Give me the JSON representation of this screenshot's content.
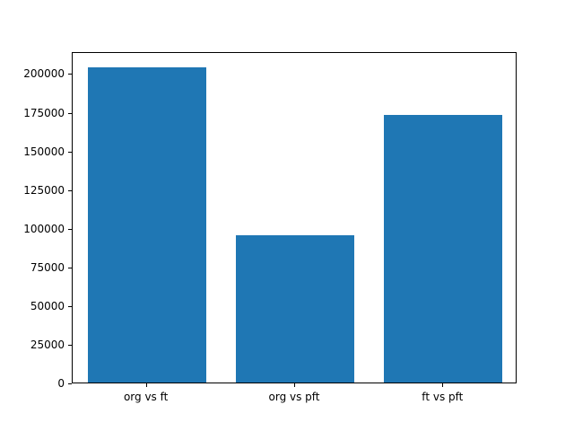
{
  "chart_data": {
    "type": "bar",
    "categories": [
      "org vs ft",
      "org vs pft",
      "ft vs pft"
    ],
    "values": [
      204000,
      95000,
      173000
    ],
    "title": "",
    "xlabel": "",
    "ylabel": "",
    "ylim": [
      0,
      214200
    ],
    "yticks": [
      0,
      25000,
      50000,
      75000,
      100000,
      125000,
      150000,
      175000,
      200000
    ],
    "bar_color": "#1f77b4",
    "bar_width_fraction": 0.8,
    "grid": false,
    "legend": false,
    "background_color": "#ffffff"
  }
}
